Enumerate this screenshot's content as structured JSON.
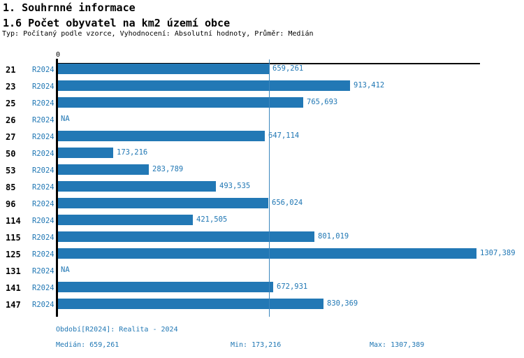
{
  "header": {
    "title1": "1. Souhrnné informace",
    "title2": "1.6 Počet obyvatel na km2 území obce",
    "subtitle": "Typ: Počítaný podle vzorce, Vyhodnocení: Absolutní hodnoty, Průměr: Medián"
  },
  "chart_data": {
    "type": "bar",
    "orientation": "horizontal",
    "title": "1.6 Počet obyvatel na km2 území obce",
    "series_label": "R2024",
    "categories": [
      "21",
      "23",
      "25",
      "26",
      "27",
      "50",
      "53",
      "85",
      "96",
      "114",
      "115",
      "125",
      "131",
      "141",
      "147"
    ],
    "values": [
      659.261,
      913.412,
      765.693,
      null,
      647.114,
      173.216,
      283.789,
      493.535,
      656.024,
      421.505,
      801.019,
      1307.389,
      null,
      672.931,
      830.369
    ],
    "value_labels": [
      "659,261",
      "913,412",
      "765,693",
      "NA",
      "647,114",
      "173,216",
      "283,789",
      "493,535",
      "656,024",
      "421,505",
      "801,019",
      "1307,389",
      "NA",
      "672,931",
      "830,369"
    ],
    "na_label": "NA",
    "zero_tick_label": "0",
    "xlim": [
      0,
      1320
    ],
    "median_value": 659.261,
    "grid": false,
    "legend": "none",
    "bar_color": "#2278b5",
    "median_line_color": "#3a86bd",
    "label_color": "#2077b4"
  },
  "footer": {
    "period": "Období[R2024]: Realita - 2024",
    "median": "Medián: 659,261",
    "min": "Min: 173,216",
    "max": "Max: 1307,389"
  }
}
